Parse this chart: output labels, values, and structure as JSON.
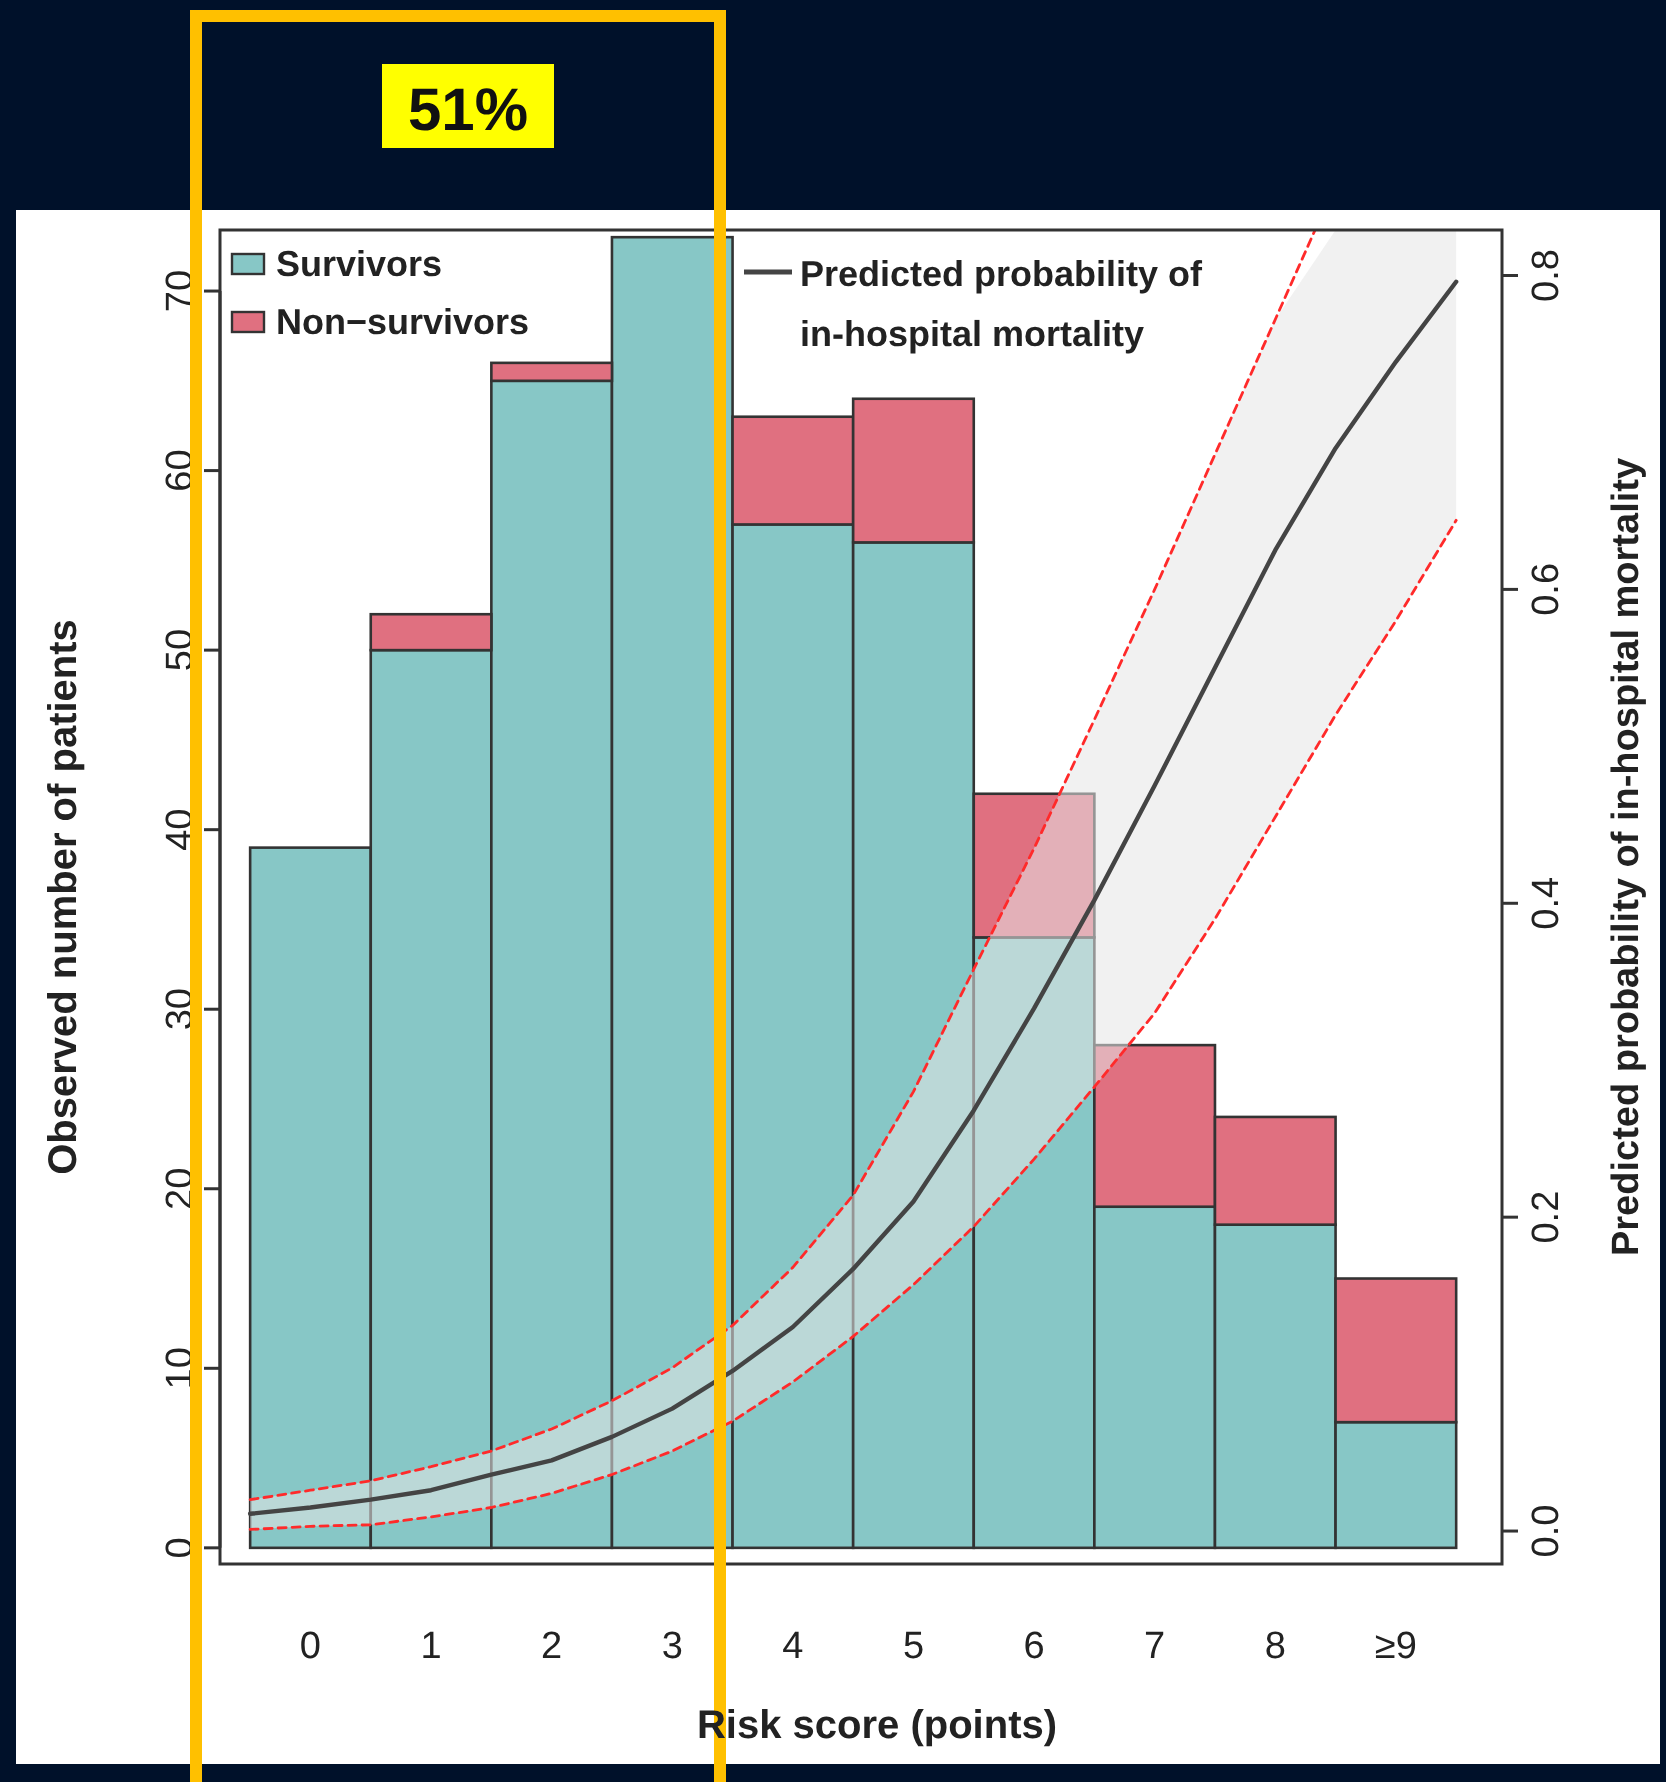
{
  "chart_data": {
    "type": "bar",
    "stacked": true,
    "xlabel": "Risk score (points)",
    "ylabel": "Observed number of patients",
    "y2label": "Predicted probability of in-hospital mortality",
    "annotations": [
      "51%"
    ],
    "x": [
      0,
      1,
      2,
      3,
      4,
      5,
      6,
      7,
      8,
      9
    ],
    "xlim": [
      -0.75,
      9.88
    ],
    "xticks": [
      0,
      1,
      2,
      3,
      4,
      5,
      6,
      7,
      8,
      {
        "value": 9,
        "label": "≥9"
      }
    ],
    "ylim": [
      -0.9,
      73.4
    ],
    "yticks": [
      0,
      10,
      20,
      30,
      40,
      50,
      60,
      70
    ],
    "y2lim": [
      -0.021,
      0.829
    ],
    "y2ticks": [
      {
        "value": 0,
        "label": "0.0"
      },
      {
        "value": 0.2,
        "label": "0.2"
      },
      {
        "value": 0.4,
        "label": "0.4"
      },
      {
        "value": 0.6,
        "label": "0.6"
      },
      {
        "value": 0.8,
        "label": "0.8"
      }
    ],
    "legend": "top left",
    "grid": false,
    "series": [
      {
        "name": "Survivors",
        "color": "#87c7c6",
        "values": [
          39,
          50,
          65,
          73,
          57,
          56,
          34,
          19,
          18,
          7
        ]
      },
      {
        "name": "Non−survivors",
        "color": "#e07080",
        "values": [
          0,
          2,
          1,
          0,
          6,
          8,
          8,
          9,
          6,
          8
        ]
      },
      {
        "name": "Predicted probability of in-hospital mortality",
        "type": "line",
        "axis": "y2",
        "color": "#444444",
        "line_style": "solid",
        "x": [
          -0.5,
          0,
          0.5,
          1,
          1.5,
          2,
          2.5,
          3,
          3.5,
          4,
          4.5,
          5,
          5.5,
          6,
          6.5,
          7,
          7.5,
          8,
          8.5,
          9,
          9.5
        ],
        "values": [
          0.011,
          0.015,
          0.02,
          0.026,
          0.036,
          0.045,
          0.06,
          0.078,
          0.102,
          0.13,
          0.167,
          0.21,
          0.268,
          0.333,
          0.402,
          0.475,
          0.55,
          0.625,
          0.69,
          0.745,
          0.796
        ],
        "lower": [
          0.001,
          0.003,
          0.004,
          0.009,
          0.015,
          0.024,
          0.036,
          0.051,
          0.07,
          0.095,
          0.124,
          0.157,
          0.194,
          0.237,
          0.283,
          0.33,
          0.39,
          0.455,
          0.52,
          0.58,
          0.644
        ],
        "upper": [
          0.02,
          0.026,
          0.032,
          0.041,
          0.051,
          0.065,
          0.083,
          0.104,
          0.131,
          0.168,
          0.214,
          0.28,
          0.358,
          0.435,
          0.517,
          0.6,
          0.686,
          0.772,
          0.829,
          0.829,
          0.829
        ]
      },
      {
        "type": "line",
        "axis": "y2",
        "color": "#ff2a2a",
        "line_style": "dashed",
        "x": [
          -0.5,
          0,
          0.5,
          1,
          1.5,
          2,
          2.5,
          3,
          3.5,
          4,
          4.5,
          5,
          5.5,
          6,
          6.5,
          7,
          7.5,
          8,
          8.5,
          9,
          9.5
        ],
        "values": [
          0.001,
          0.003,
          0.004,
          0.009,
          0.015,
          0.024,
          0.036,
          0.051,
          0.07,
          0.095,
          0.124,
          0.157,
          0.194,
          0.237,
          0.283,
          0.33,
          0.39,
          0.455,
          0.52,
          0.58,
          0.644
        ]
      },
      {
        "type": "line",
        "axis": "y2",
        "color": "#ff2a2a",
        "line_style": "dashed",
        "x": [
          -0.5,
          0,
          0.5,
          1,
          1.5,
          2,
          2.5,
          3,
          3.5,
          4,
          4.5,
          5,
          5.5,
          6,
          6.5,
          7,
          7.5,
          8,
          8.33
        ],
        "values": [
          0.02,
          0.026,
          0.032,
          0.041,
          0.051,
          0.065,
          0.083,
          0.104,
          0.131,
          0.168,
          0.214,
          0.28,
          0.358,
          0.435,
          0.517,
          0.6,
          0.686,
          0.772,
          0.829
        ]
      }
    ]
  }
}
